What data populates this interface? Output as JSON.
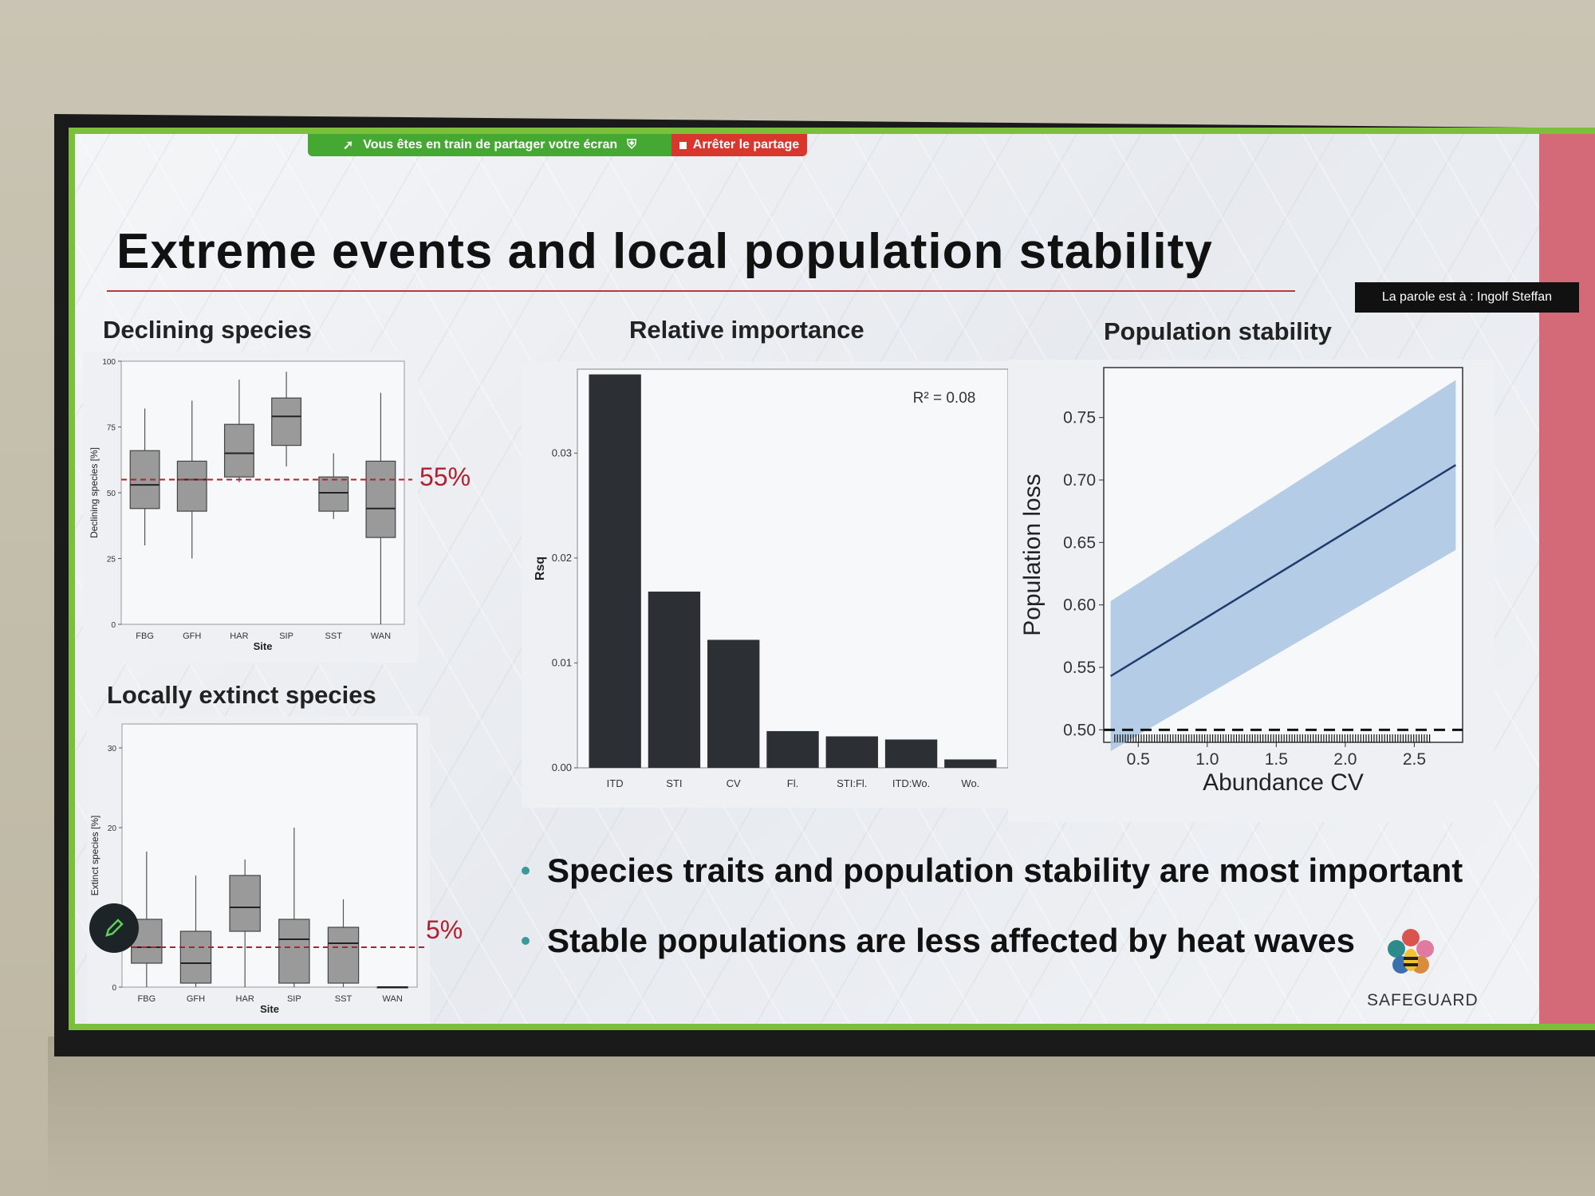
{
  "share_bar": {
    "sharing_text": "Vous êtes en train de partager votre écran",
    "stop_label": "Arrêter le partage"
  },
  "speaker_label": "La parole est à : Ingolf Steffan",
  "slide": {
    "title": "Extreme events and local population stability",
    "panels": {
      "declining": "Declining species",
      "relative": "Relative importance",
      "stability": "Population stability",
      "extinct": "Locally extinct species"
    },
    "annotations": {
      "declining_pct": "55%",
      "extinct_pct": "5%"
    },
    "bullets": [
      "Species traits and population stability are most important",
      "Stable populations are less affected by heat waves"
    ],
    "logo_text": "SAFEGUARD"
  },
  "colors": {
    "accent_green": "#44a832",
    "stop_red": "#d8372e",
    "ref_line": "#b02030",
    "bar_fill": "#2c2f33",
    "box_fill": "#9a9a9a",
    "ribbon": "#a8c4e0",
    "trend_line": "#1f3c6e"
  },
  "chart_data": [
    {
      "type": "boxplot",
      "title": "Declining species",
      "xlabel": "Site",
      "ylabel": "Declining species [%]",
      "ylim": [
        0,
        100
      ],
      "yticks": [
        "0",
        "25",
        "50",
        "75",
        "100"
      ],
      "categories": [
        "FBG",
        "GFH",
        "HAR",
        "SIP",
        "SST",
        "WAN"
      ],
      "boxes": [
        {
          "min": 30,
          "q1": 44,
          "median": 53,
          "q3": 66,
          "max": 82
        },
        {
          "min": 25,
          "q1": 43,
          "median": 55,
          "q3": 62,
          "max": 85
        },
        {
          "min": 54,
          "q1": 56,
          "median": 65,
          "q3": 76,
          "max": 93
        },
        {
          "min": 60,
          "q1": 68,
          "median": 79,
          "q3": 86,
          "max": 96
        },
        {
          "min": 40,
          "q1": 43,
          "median": 50,
          "q3": 56,
          "max": 65
        },
        {
          "min": 0,
          "q1": 33,
          "median": 44,
          "q3": 62,
          "max": 88
        }
      ],
      "reference_line": 55
    },
    {
      "type": "bar",
      "title": "Relative importance",
      "ylabel": "Rsq",
      "ylim": [
        0,
        0.038
      ],
      "yticks": [
        "0.00",
        "0.01",
        "0.02",
        "0.03"
      ],
      "categories": [
        "ITD",
        "STI",
        "CV",
        "Fl.",
        "STI:Fl.",
        "ITD:Wo.",
        "Wo."
      ],
      "values": [
        0.0375,
        0.0168,
        0.0122,
        0.0035,
        0.003,
        0.0027,
        0.0008
      ],
      "annotation": "R² = 0.08"
    },
    {
      "type": "line",
      "title": "Population stability",
      "xlabel": "Abundance CV",
      "ylabel": "Population loss",
      "xlim": [
        0.25,
        2.85
      ],
      "ylim": [
        0.49,
        0.79
      ],
      "xticks": [
        "0.5",
        "1.0",
        "1.5",
        "2.0",
        "2.5"
      ],
      "yticks": [
        "0.50",
        "0.55",
        "0.60",
        "0.65",
        "0.70",
        "0.75"
      ],
      "series": [
        {
          "x": [
            0.3,
            2.8
          ],
          "y": [
            0.543,
            0.712
          ],
          "lower": [
            0.483,
            0.644
          ],
          "upper": [
            0.603,
            0.78
          ]
        }
      ],
      "reference_line": 0.5
    },
    {
      "type": "boxplot",
      "title": "Locally extinct species",
      "xlabel": "Site",
      "ylabel": "Extinct species [%]",
      "ylim": [
        0,
        33
      ],
      "yticks": [
        "0",
        "10",
        "20",
        "30"
      ],
      "categories": [
        "FBG",
        "GFH",
        "HAR",
        "SIP",
        "SST",
        "WAN"
      ],
      "boxes": [
        {
          "min": 0,
          "q1": 3,
          "median": 5,
          "q3": 8.5,
          "max": 17
        },
        {
          "min": 0,
          "q1": 0.5,
          "median": 3,
          "q3": 7,
          "max": 14
        },
        {
          "min": 0,
          "q1": 7,
          "median": 10,
          "q3": 14,
          "max": 16
        },
        {
          "min": 0,
          "q1": 0.5,
          "median": 6,
          "q3": 8.5,
          "max": 20
        },
        {
          "min": 0,
          "q1": 0.5,
          "median": 5.5,
          "q3": 7.5,
          "max": 11
        },
        {
          "min": 0,
          "q1": 0,
          "median": 0,
          "q3": 0,
          "max": 0
        }
      ],
      "reference_line": 5
    }
  ]
}
